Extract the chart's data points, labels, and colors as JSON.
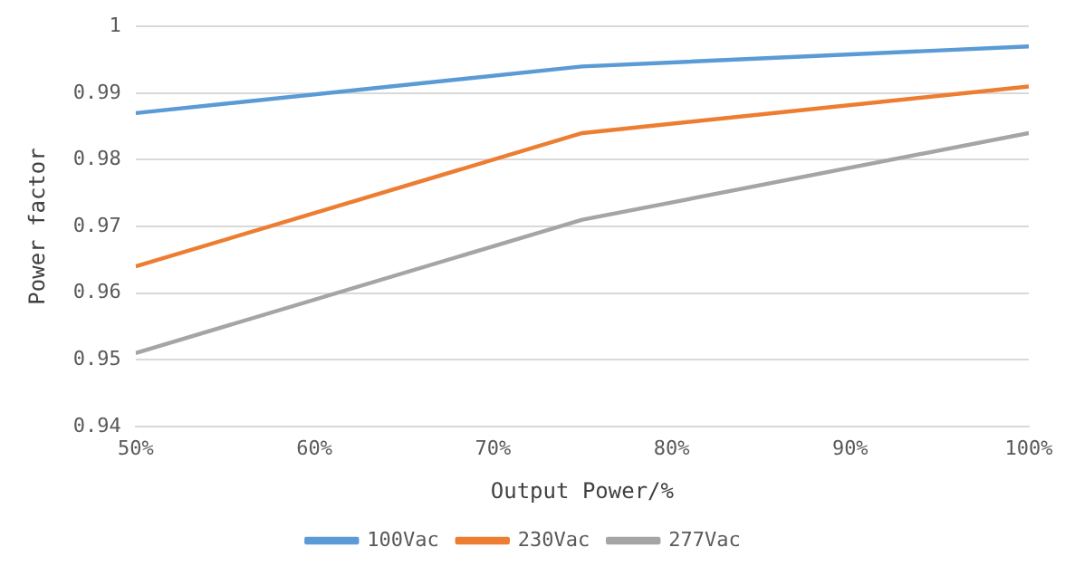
{
  "chart_data": {
    "type": "line",
    "xlabel": "Output Power/%",
    "ylabel": "Power factor",
    "x": [
      50,
      75,
      100
    ],
    "series": [
      {
        "name": "100Vac",
        "color": "#5b9bd5",
        "values": [
          0.987,
          0.994,
          0.997
        ]
      },
      {
        "name": "230Vac",
        "color": "#ed7d31",
        "values": [
          0.964,
          0.984,
          0.991
        ]
      },
      {
        "name": "277Vac",
        "color": "#a5a5a5",
        "values": [
          0.951,
          0.971,
          0.984
        ]
      }
    ],
    "xlim": [
      50,
      100
    ],
    "xticks": [
      {
        "value": 50,
        "label": "50%"
      },
      {
        "value": 60,
        "label": "60%"
      },
      {
        "value": 70,
        "label": "70%"
      },
      {
        "value": 80,
        "label": "80%"
      },
      {
        "value": 90,
        "label": "90%"
      },
      {
        "value": 100,
        "label": "100%"
      }
    ],
    "ylim": [
      0.94,
      1
    ],
    "yticks": [
      0.94,
      0.95,
      0.96,
      0.97,
      0.98,
      0.99,
      1
    ],
    "grid": "y",
    "legend": "bottom",
    "marker": "none",
    "line_style": "solid"
  }
}
